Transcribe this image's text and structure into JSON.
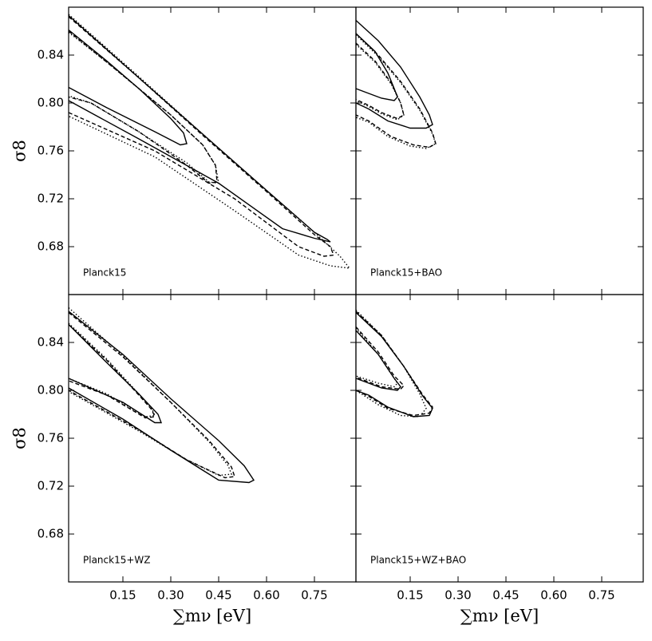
{
  "chart_data": {
    "type": "contour",
    "xlabel": "∑mν [eV]",
    "ylabel": "σ8",
    "xlim": [
      -0.02,
      0.88
    ],
    "ylim": [
      0.64,
      0.88
    ],
    "xticks": [
      0.15,
      {
        "value": 0.3,
        "label": "0.30"
      },
      0.45,
      {
        "value": 0.6,
        "label": "0.60"
      },
      0.75
    ],
    "yticks": [
      0.68,
      0.72,
      0.76,
      {
        "value": 0.8,
        "label": "0.80"
      },
      0.84
    ],
    "color": "#000000",
    "panels": [
      {
        "label": "Planck15",
        "series": [
          {
            "style": "solid",
            "x": [
              -0.02,
              0.2,
              0.4,
              0.6,
              0.75,
              0.79,
              0.8,
              0.75,
              0.65,
              0.45,
              0.2,
              -0.02
            ],
            "y": [
              0.873,
              0.821,
              0.774,
              0.727,
              0.692,
              0.686,
              0.684,
              0.687,
              0.695,
              0.733,
              0.77,
              0.802
            ]
          },
          {
            "style": "solid",
            "x": [
              -0.02,
              0.1,
              0.2,
              0.3,
              0.34,
              0.35,
              0.33,
              0.25,
              0.1,
              -0.02
            ],
            "y": [
              0.861,
              0.835,
              0.812,
              0.787,
              0.775,
              0.766,
              0.765,
              0.776,
              0.796,
              0.813
            ]
          },
          {
            "style": "dashed",
            "x": [
              -0.02,
              0.2,
              0.4,
              0.6,
              0.75,
              0.8,
              0.81,
              0.78,
              0.7,
              0.5,
              0.25,
              -0.02
            ],
            "y": [
              0.872,
              0.821,
              0.773,
              0.726,
              0.69,
              0.68,
              0.673,
              0.672,
              0.68,
              0.72,
              0.76,
              0.792
            ]
          },
          {
            "style": "dashed",
            "x": [
              -0.02,
              0.1,
              0.2,
              0.3,
              0.4,
              0.44,
              0.445,
              0.42,
              0.35,
              0.2,
              0.05,
              -0.02
            ],
            "y": [
              0.86,
              0.834,
              0.812,
              0.79,
              0.765,
              0.748,
              0.734,
              0.733,
              0.748,
              0.776,
              0.8,
              0.805
            ]
          },
          {
            "style": "dotted",
            "x": [
              -0.02,
              0.2,
              0.4,
              0.6,
              0.75,
              0.83,
              0.86,
              0.8,
              0.7,
              0.5,
              0.25,
              -0.02
            ],
            "y": [
              0.874,
              0.822,
              0.774,
              0.727,
              0.692,
              0.672,
              0.662,
              0.664,
              0.673,
              0.71,
              0.755,
              0.789
            ]
          },
          {
            "style": "dotted",
            "x": [
              -0.02,
              0.1,
              0.2,
              0.3,
              0.4,
              0.44,
              0.45,
              0.42,
              0.35,
              0.2,
              0.05,
              -0.02
            ],
            "y": [
              0.859,
              0.834,
              0.812,
              0.79,
              0.765,
              0.748,
              0.733,
              0.734,
              0.75,
              0.776,
              0.8,
              0.806
            ]
          }
        ]
      },
      {
        "label": "Planck15+BAO",
        "series": [
          {
            "style": "solid",
            "x": [
              -0.02,
              0.05,
              0.12,
              0.18,
              0.21,
              0.22,
              0.2,
              0.15,
              0.08,
              0.02,
              -0.02
            ],
            "y": [
              0.869,
              0.852,
              0.83,
              0.805,
              0.79,
              0.782,
              0.779,
              0.779,
              0.785,
              0.795,
              0.8
            ]
          },
          {
            "style": "solid",
            "x": [
              -0.02,
              0.04,
              0.08,
              0.1,
              0.11,
              0.1,
              0.06,
              0.02,
              -0.02
            ],
            "y": [
              0.858,
              0.843,
              0.825,
              0.812,
              0.805,
              0.802,
              0.804,
              0.808,
              0.812
            ]
          },
          {
            "style": "dashed",
            "x": [
              -0.02,
              0.05,
              0.12,
              0.18,
              0.22,
              0.23,
              0.21,
              0.16,
              0.09,
              0.02,
              -0.02
            ],
            "y": [
              0.858,
              0.84,
              0.818,
              0.795,
              0.775,
              0.766,
              0.763,
              0.765,
              0.772,
              0.785,
              0.79
            ]
          },
          {
            "style": "dashed",
            "x": [
              -0.02,
              0.04,
              0.09,
              0.12,
              0.13,
              0.11,
              0.06,
              0.02,
              -0.02
            ],
            "y": [
              0.85,
              0.835,
              0.817,
              0.8,
              0.79,
              0.787,
              0.792,
              0.798,
              0.803
            ]
          },
          {
            "style": "dotted",
            "x": [
              -0.02,
              0.05,
              0.12,
              0.18,
              0.22,
              0.23,
              0.2,
              0.15,
              0.08,
              0.02,
              -0.02
            ],
            "y": [
              0.857,
              0.839,
              0.817,
              0.794,
              0.774,
              0.766,
              0.762,
              0.764,
              0.772,
              0.784,
              0.788
            ]
          },
          {
            "style": "dotted",
            "x": [
              -0.02,
              0.04,
              0.09,
              0.12,
              0.13,
              0.11,
              0.06,
              0.02,
              -0.02
            ],
            "y": [
              0.849,
              0.834,
              0.816,
              0.8,
              0.79,
              0.786,
              0.791,
              0.797,
              0.802
            ]
          }
        ]
      },
      {
        "label": "Planck15+WZ",
        "series": [
          {
            "style": "solid",
            "x": [
              -0.02,
              0.15,
              0.3,
              0.45,
              0.53,
              0.56,
              0.545,
              0.45,
              0.3,
              0.15,
              -0.02
            ],
            "y": [
              0.866,
              0.83,
              0.793,
              0.758,
              0.737,
              0.725,
              0.723,
              0.725,
              0.75,
              0.776,
              0.802
            ]
          },
          {
            "style": "solid",
            "x": [
              -0.02,
              0.1,
              0.2,
              0.26,
              0.27,
              0.25,
              0.15,
              -0.02
            ],
            "y": [
              0.855,
              0.823,
              0.797,
              0.78,
              0.773,
              0.773,
              0.79,
              0.81
            ]
          },
          {
            "style": "dashed",
            "x": [
              -0.02,
              0.15,
              0.3,
              0.42,
              0.49,
              0.5,
              0.47,
              0.35,
              0.2,
              -0.02
            ],
            "y": [
              0.865,
              0.828,
              0.79,
              0.758,
              0.736,
              0.728,
              0.727,
              0.742,
              0.767,
              0.8
            ]
          },
          {
            "style": "dashed",
            "x": [
              -0.02,
              0.1,
              0.2,
              0.24,
              0.25,
              0.22,
              0.1,
              -0.02
            ],
            "y": [
              0.855,
              0.825,
              0.796,
              0.784,
              0.778,
              0.777,
              0.796,
              0.808
            ]
          },
          {
            "style": "dotted",
            "x": [
              -0.02,
              0.15,
              0.3,
              0.42,
              0.48,
              0.49,
              0.45,
              0.35,
              0.2,
              -0.02
            ],
            "y": [
              0.869,
              0.829,
              0.79,
              0.757,
              0.737,
              0.73,
              0.729,
              0.742,
              0.766,
              0.799
            ]
          },
          {
            "style": "dotted",
            "x": [
              -0.02,
              0.1,
              0.2,
              0.24,
              0.25,
              0.22,
              0.1,
              -0.02
            ],
            "y": [
              0.856,
              0.826,
              0.797,
              0.785,
              0.779,
              0.778,
              0.797,
              0.81
            ]
          }
        ]
      },
      {
        "label": "Planck15+WZ+BAO",
        "series": [
          {
            "style": "solid",
            "x": [
              -0.02,
              0.06,
              0.13,
              0.19,
              0.22,
              0.21,
              0.16,
              0.08,
              0.02,
              -0.02
            ],
            "y": [
              0.865,
              0.845,
              0.82,
              0.795,
              0.785,
              0.779,
              0.778,
              0.786,
              0.796,
              0.8
            ]
          },
          {
            "style": "solid",
            "x": [
              -0.02,
              0.05,
              0.1,
              0.12,
              0.11,
              0.06,
              -0.02
            ],
            "y": [
              0.85,
              0.83,
              0.81,
              0.803,
              0.8,
              0.802,
              0.81
            ]
          },
          {
            "style": "dashed",
            "x": [
              -0.02,
              0.06,
              0.13,
              0.19,
              0.22,
              0.21,
              0.16,
              0.08,
              0.02,
              -0.02
            ],
            "y": [
              0.866,
              0.846,
              0.82,
              0.796,
              0.786,
              0.781,
              0.779,
              0.785,
              0.795,
              0.8
            ]
          },
          {
            "style": "dashed",
            "x": [
              -0.02,
              0.05,
              0.1,
              0.13,
              0.12,
              0.06,
              -0.02
            ],
            "y": [
              0.853,
              0.832,
              0.812,
              0.804,
              0.801,
              0.803,
              0.811
            ]
          },
          {
            "style": "dotted",
            "x": [
              -0.02,
              0.06,
              0.13,
              0.18,
              0.2,
              0.18,
              0.12,
              0.05,
              -0.02
            ],
            "y": [
              0.867,
              0.846,
              0.82,
              0.797,
              0.785,
              0.778,
              0.779,
              0.788,
              0.8
            ]
          },
          {
            "style": "dotted",
            "x": [
              -0.02,
              0.05,
              0.09,
              0.11,
              0.1,
              0.05,
              -0.02
            ],
            "y": [
              0.852,
              0.83,
              0.814,
              0.806,
              0.803,
              0.806,
              0.812
            ]
          }
        ]
      }
    ]
  }
}
